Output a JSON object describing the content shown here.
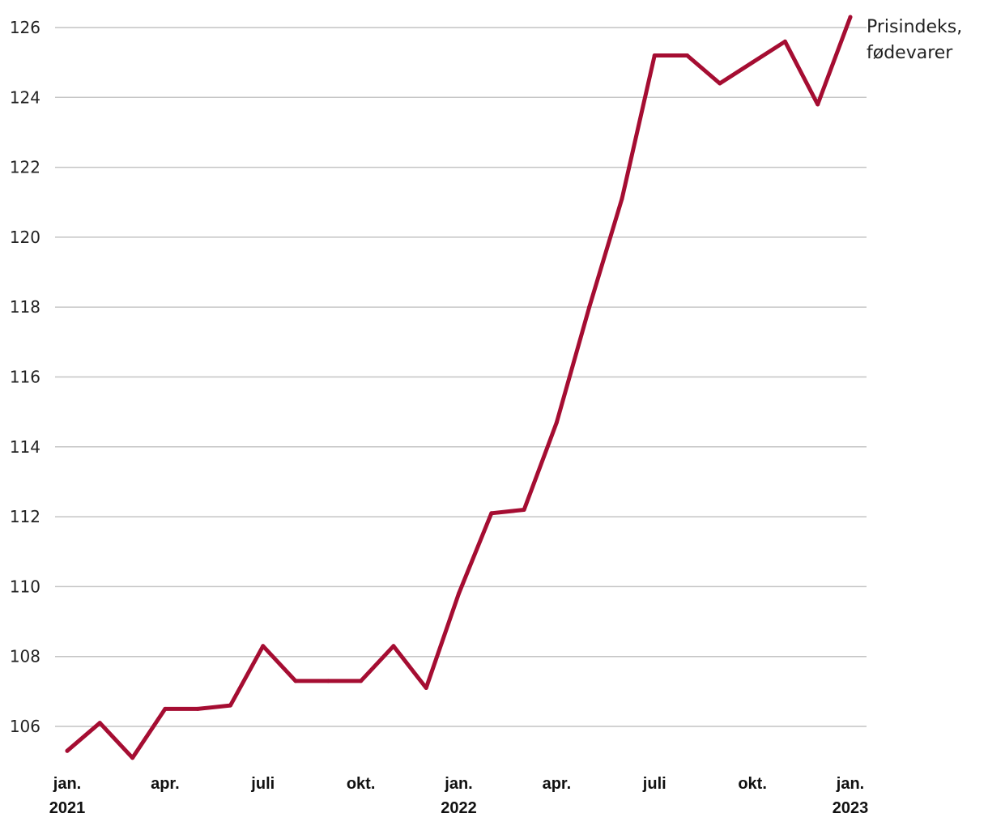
{
  "chart_data": {
    "type": "line",
    "title": "",
    "xlabel": "",
    "ylabel": "",
    "ylim": [
      105,
      126.5
    ],
    "yticks": [
      106,
      108,
      110,
      112,
      114,
      116,
      118,
      120,
      122,
      124,
      126
    ],
    "grid": true,
    "legend": "none",
    "series_label_lines": [
      "Prisindeks,",
      "fødevarer"
    ],
    "x": [
      "2021-01",
      "2021-02",
      "2021-03",
      "2021-04",
      "2021-05",
      "2021-06",
      "2021-07",
      "2021-08",
      "2021-09",
      "2021-10",
      "2021-11",
      "2021-12",
      "2022-01",
      "2022-02",
      "2022-03",
      "2022-04",
      "2022-05",
      "2022-06",
      "2022-07",
      "2022-08",
      "2022-09",
      "2022-10",
      "2022-11",
      "2022-12",
      "2023-01"
    ],
    "xtick_labels": [
      {
        "x": "2021-01",
        "lines": [
          "jan.",
          "2021"
        ]
      },
      {
        "x": "2021-04",
        "lines": [
          "apr."
        ]
      },
      {
        "x": "2021-07",
        "lines": [
          "juli"
        ]
      },
      {
        "x": "2021-10",
        "lines": [
          "okt."
        ]
      },
      {
        "x": "2022-01",
        "lines": [
          "jan.",
          "2022"
        ]
      },
      {
        "x": "2022-04",
        "lines": [
          "apr."
        ]
      },
      {
        "x": "2022-07",
        "lines": [
          "juli"
        ]
      },
      {
        "x": "2022-10",
        "lines": [
          "okt."
        ]
      },
      {
        "x": "2023-01",
        "lines": [
          "jan.",
          "2023"
        ]
      }
    ],
    "series": [
      {
        "values": [
          105.3,
          106.1,
          105.1,
          106.5,
          106.5,
          106.6,
          108.3,
          107.3,
          107.3,
          107.3,
          108.3,
          107.1,
          109.8,
          112.1,
          112.2,
          114.7,
          118.0,
          121.1,
          125.2,
          125.2,
          124.4,
          125.0,
          125.6,
          123.8,
          126.3
        ],
        "color": "#a50d32"
      }
    ]
  }
}
